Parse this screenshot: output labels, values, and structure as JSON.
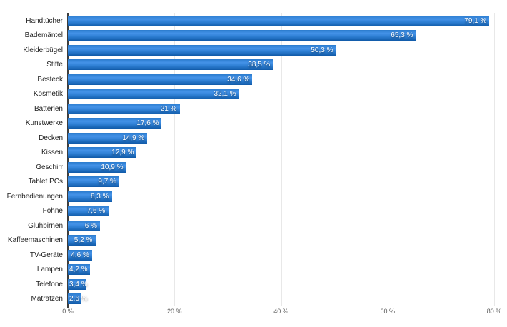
{
  "chart_data": {
    "type": "bar",
    "orientation": "horizontal",
    "categories": [
      "Handtücher",
      "Bademäntel",
      "Kleiderbügel",
      "Stifte",
      "Besteck",
      "Kosmetik",
      "Batterien",
      "Kunstwerke",
      "Decken",
      "Kissen",
      "Geschirr",
      "Tablet PCs",
      "Fernbedienungen",
      "Föhne",
      "Glühbirnen",
      "Kaffeemaschinen",
      "TV-Geräte",
      "Lampen",
      "Telefone",
      "Matratzen"
    ],
    "values": [
      79.1,
      65.3,
      50.3,
      38.5,
      34.6,
      32.1,
      21,
      17.6,
      14.9,
      12.9,
      10.9,
      9.7,
      8.3,
      7.6,
      6,
      5.2,
      4.6,
      4.2,
      3.4,
      2.6
    ],
    "value_labels": [
      "79,1 %",
      "65,3 %",
      "50,3 %",
      "38,5 %",
      "34,6 %",
      "32,1 %",
      "21 %",
      "17,6 %",
      "14,9 %",
      "12,9 %",
      "10,9 %",
      "9,7 %",
      "8,3 %",
      "7,6 %",
      "6 %",
      "5,2 %",
      "4,6 %",
      "4,2 %",
      "3,4 %",
      "2,6 %"
    ],
    "xlim": [
      0,
      80
    ],
    "x_ticks": [
      "0 %",
      "20 %",
      "40 %",
      "60 %",
      "80 %"
    ],
    "x_tick_values": [
      0,
      20,
      40,
      60,
      80
    ],
    "grid": "vertical-only",
    "legend": "none",
    "xlabel": "",
    "ylabel": ""
  },
  "colors": {
    "bar_gradient_top": "#2b7ccd",
    "bar_gradient_light": "#4492e8",
    "bar_gradient_mid": "#2d7ed2",
    "bar_gradient_bottom": "#115aa8",
    "axis_line": "#3d3d3d",
    "gridline": "#e8e8e8",
    "category_label": "#222222",
    "value_label": "#ffffff",
    "tick_label": "#5a5a5a",
    "background": "#ffffff"
  }
}
